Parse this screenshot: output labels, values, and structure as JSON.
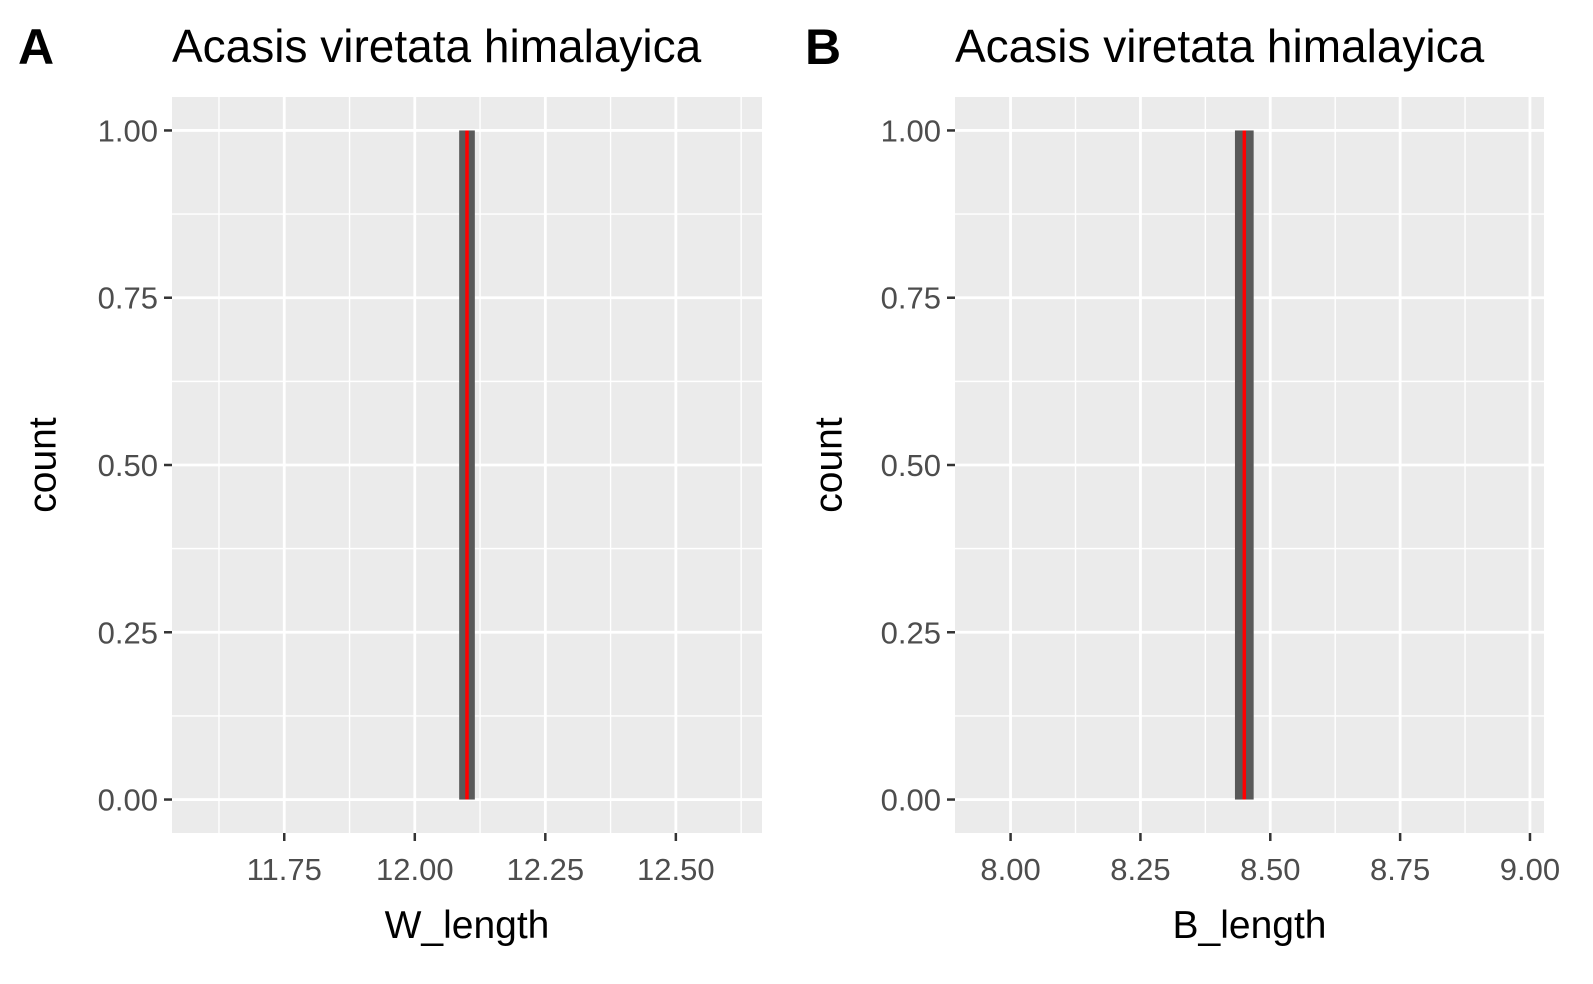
{
  "colors": {
    "panel_background": "#ebebeb",
    "grid_line": "#ffffff",
    "bar_fill": "#595959",
    "reference_line": "#ff0000",
    "tick_mark": "#333333"
  },
  "chart_data": [
    {
      "type": "bar",
      "tag": "A",
      "title": "Acasis viretata himalayica",
      "xlabel": "W_length",
      "ylabel": "count",
      "x_ticks": [
        11.75,
        12.0,
        12.25,
        12.5
      ],
      "x_tick_labels": [
        "11.75",
        "12.00",
        "12.25",
        "12.50"
      ],
      "y_ticks": [
        0,
        0.25,
        0.5,
        0.75,
        1.0
      ],
      "y_tick_labels": [
        "0.00",
        "0.25",
        "0.50",
        "0.75",
        "1.00"
      ],
      "xlim": [
        11.535,
        12.665
      ],
      "ylim": [
        -0.05,
        1.05
      ],
      "bars": [
        {
          "x_start": 12.085,
          "x_end": 12.115,
          "count": 1
        }
      ],
      "vline": 12.1,
      "grid": true
    },
    {
      "type": "bar",
      "tag": "B",
      "title": "Acasis viretata himalayica",
      "xlabel": "B_length",
      "ylabel": "count",
      "x_ticks": [
        8.0,
        8.25,
        8.5,
        8.75,
        9.0
      ],
      "x_tick_labels": [
        "8.00",
        "8.25",
        "8.50",
        "8.75",
        "9.00"
      ],
      "y_ticks": [
        0,
        0.25,
        0.5,
        0.75,
        1.0
      ],
      "y_tick_labels": [
        "0.00",
        "0.25",
        "0.50",
        "0.75",
        "1.00"
      ],
      "xlim": [
        7.893,
        9.027
      ],
      "ylim": [
        -0.05,
        1.05
      ],
      "bars": [
        {
          "x_start": 8.432,
          "x_end": 8.468,
          "count": 1
        }
      ],
      "vline": 8.45,
      "grid": true
    }
  ]
}
